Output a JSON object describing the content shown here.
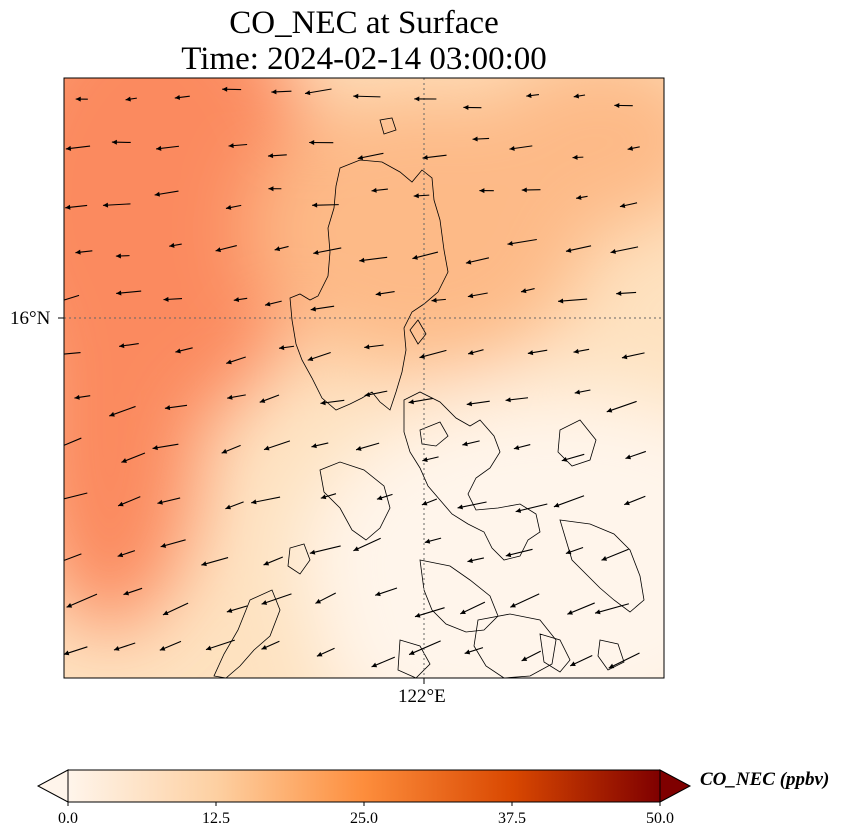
{
  "title_line1": "CO_NEC at Surface",
  "title_line2": "Time: 2024-02-14 03:00:00",
  "lat_tick": "16°N",
  "lon_tick": "122°E",
  "colorbar": {
    "label": "CO_NEC (ppbv)",
    "ticks": [
      "0.0",
      "12.5",
      "25.0",
      "37.5",
      "50.0"
    ],
    "min": 0,
    "max": 50,
    "colors": [
      "#fff5eb",
      "#fdd0a2",
      "#fd8d3c",
      "#d94801",
      "#7f0000"
    ]
  },
  "field_colors": {
    "high": "#fb8a5e",
    "mid": "#fdba87",
    "low": "#fee2c0",
    "lowest": "#fff5eb"
  },
  "icons": [
    "wind-arrow-icon",
    "colorbar-extend-arrow-icon"
  ]
}
